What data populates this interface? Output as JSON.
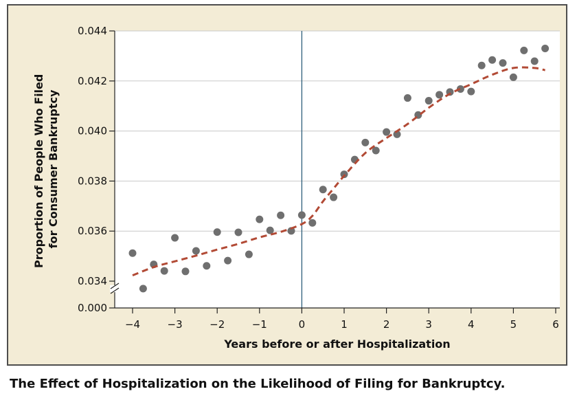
{
  "caption": "The Effect of Hospitalization on the Likelihood of Filing for Bankruptcy.",
  "colors": {
    "panel_background": "#f3ecd6",
    "plot_background": "#ffffff",
    "points": "#6f6f6f",
    "trend": "#b24a35",
    "reference_line": "#2e5f7a",
    "grid": "#c8c8c8"
  },
  "chart_data": {
    "type": "scatter",
    "title": "",
    "xlabel": "Years before or after Hospitalization",
    "ylabel_lines": [
      "Proportion of People Who Filed",
      "for Consumer Bankruptcy"
    ],
    "xlim": [
      -4.2,
      6.2
    ],
    "ylim": [
      0.0337,
      0.044
    ],
    "x_ticks": [
      -4,
      -3,
      -2,
      -1,
      0,
      1,
      2,
      3,
      4,
      5,
      6
    ],
    "x_tick_labels": [
      "−4",
      "−3",
      "−2",
      "−1",
      "0",
      "1",
      "2",
      "3",
      "4",
      "5",
      "6"
    ],
    "y_ticks": [
      0.034,
      0.036,
      0.038,
      0.04,
      0.042,
      0.044
    ],
    "y_tick_labels": [
      "0.034",
      "0.036",
      "0.038",
      "0.040",
      "0.042",
      "0.044"
    ],
    "axis_break": {
      "label": "0.000"
    },
    "grid": "horizontal",
    "reference_line_x": 0,
    "series": [
      {
        "kind": "points",
        "x": [
          -4,
          -3.75,
          -3.5,
          -3.25,
          -3,
          -2.75,
          -2.5,
          -2.25,
          -2,
          -1.75,
          -1.5,
          -1.25,
          -1,
          -0.75,
          -0.5,
          -0.25,
          0,
          0.25,
          0.5,
          0.75,
          1,
          1.25,
          1.5,
          1.75,
          2,
          2.25,
          2.5,
          2.75,
          3,
          3.25,
          3.5,
          3.75,
          4,
          4.25,
          4.5,
          4.75,
          5,
          5.25,
          5.5,
          5.75
        ],
        "y": [
          0.03512,
          0.0337,
          0.03467,
          0.03441,
          0.03573,
          0.03439,
          0.03521,
          0.03461,
          0.03596,
          0.03482,
          0.03595,
          0.03507,
          0.03647,
          0.03603,
          0.03663,
          0.03601,
          0.03664,
          0.03633,
          0.03766,
          0.03735,
          0.03827,
          0.03886,
          0.03954,
          0.03922,
          0.03996,
          0.03987,
          0.04132,
          0.04064,
          0.04121,
          0.04145,
          0.04156,
          0.04168,
          0.04158,
          0.04262,
          0.04284,
          0.04272,
          0.04215,
          0.04322,
          0.04279,
          0.0433
        ]
      },
      {
        "kind": "trend",
        "x": [
          -4,
          -3.5,
          -3,
          -2.5,
          -2,
          -1.5,
          -1,
          -0.5,
          0,
          0.25,
          0.5,
          0.75,
          1,
          1.5,
          2,
          2.5,
          3,
          3.5,
          4,
          4.5,
          5,
          5.5,
          5.75
        ],
        "y": [
          0.03423,
          0.03456,
          0.03479,
          0.03502,
          0.03526,
          0.03549,
          0.03575,
          0.03597,
          0.03628,
          0.03661,
          0.03719,
          0.0377,
          0.03821,
          0.03912,
          0.03972,
          0.04028,
          0.04093,
          0.04149,
          0.04187,
          0.04225,
          0.04252,
          0.04252,
          0.04243
        ]
      }
    ]
  }
}
